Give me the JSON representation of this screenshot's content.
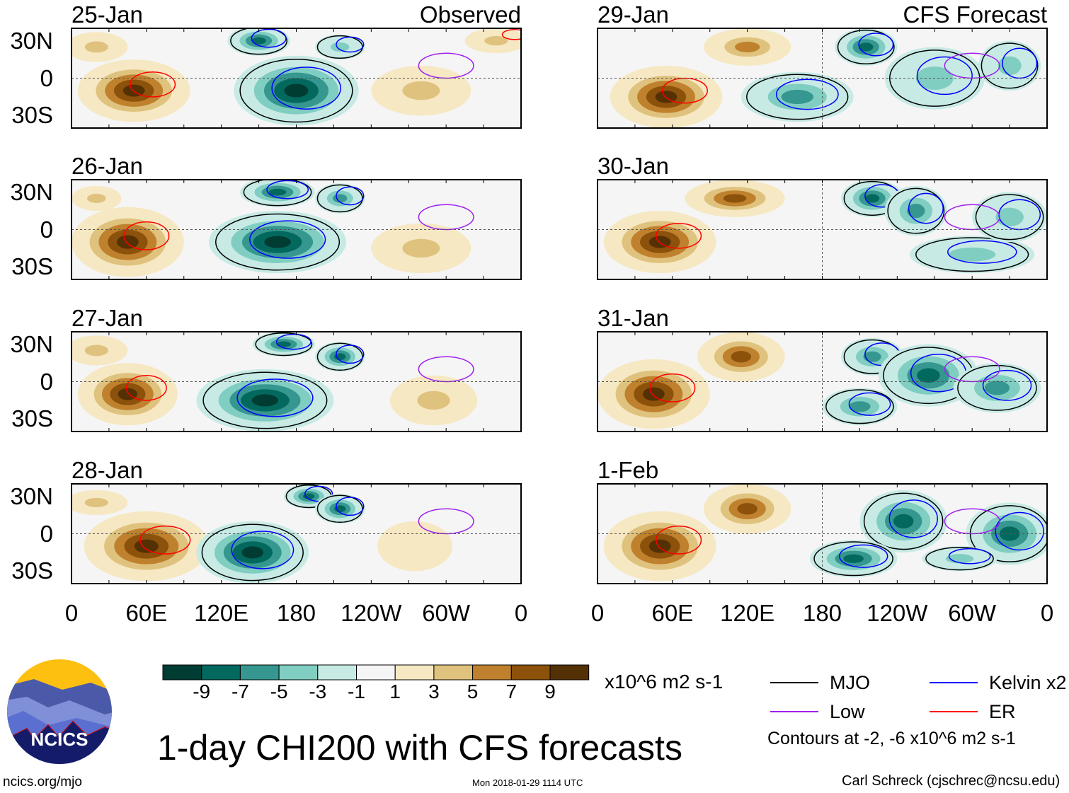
{
  "chart_data": {
    "type": "heatmap",
    "title": "1-day CHI200 with CFS forecasts",
    "units": "x10^6 m2 s-1",
    "colorbar": {
      "ticks": [
        "-9",
        "-7",
        "-5",
        "-3",
        "-1",
        "1",
        "3",
        "5",
        "7",
        "9"
      ],
      "bounds": [
        -11,
        -9,
        -7,
        -5,
        -3,
        -1,
        1,
        3,
        5,
        7,
        9,
        11
      ],
      "colors": [
        "#013c33",
        "#03695f",
        "#35978f",
        "#80cdc1",
        "#c7eae5",
        "#f5f5f5",
        "#f6e8c3",
        "#dfc27d",
        "#bf812d",
        "#8c510a",
        "#543005"
      ]
    },
    "xticks": [
      "0",
      "60E",
      "120E",
      "180",
      "120W",
      "60W",
      "0"
    ],
    "yticks": [
      "30N",
      "0",
      "30S"
    ],
    "xlim": [
      0,
      360
    ],
    "ylim": [
      -40,
      40
    ],
    "columns": [
      {
        "label": "Observed"
      },
      {
        "label": "CFS Forecast"
      }
    ],
    "panels": [
      {
        "date": "25-Jan",
        "column": 0
      },
      {
        "date": "26-Jan",
        "column": 0
      },
      {
        "date": "27-Jan",
        "column": 0
      },
      {
        "date": "28-Jan",
        "column": 0
      },
      {
        "date": "29-Jan",
        "column": 1
      },
      {
        "date": "30-Jan",
        "column": 1
      },
      {
        "date": "31-Jan",
        "column": 1
      },
      {
        "date": "1-Feb",
        "column": 1
      }
    ],
    "legend": [
      {
        "label": "MJO",
        "color": "#000000"
      },
      {
        "label": "Kelvin x2",
        "color": "#0000ff"
      },
      {
        "label": "Low",
        "color": "#a020f0"
      },
      {
        "label": "ER",
        "color": "#ff0000"
      }
    ],
    "contour_note": "Contours at -2, -6 x10^6 m2 s-1"
  },
  "footer": {
    "logo_text": "NCICS",
    "url": "ncics.org/mjo",
    "timestamp": "Mon 2018-01-29 1114 UTC",
    "author": "Carl Schreck (cjschrec@ncsu.edu)"
  }
}
